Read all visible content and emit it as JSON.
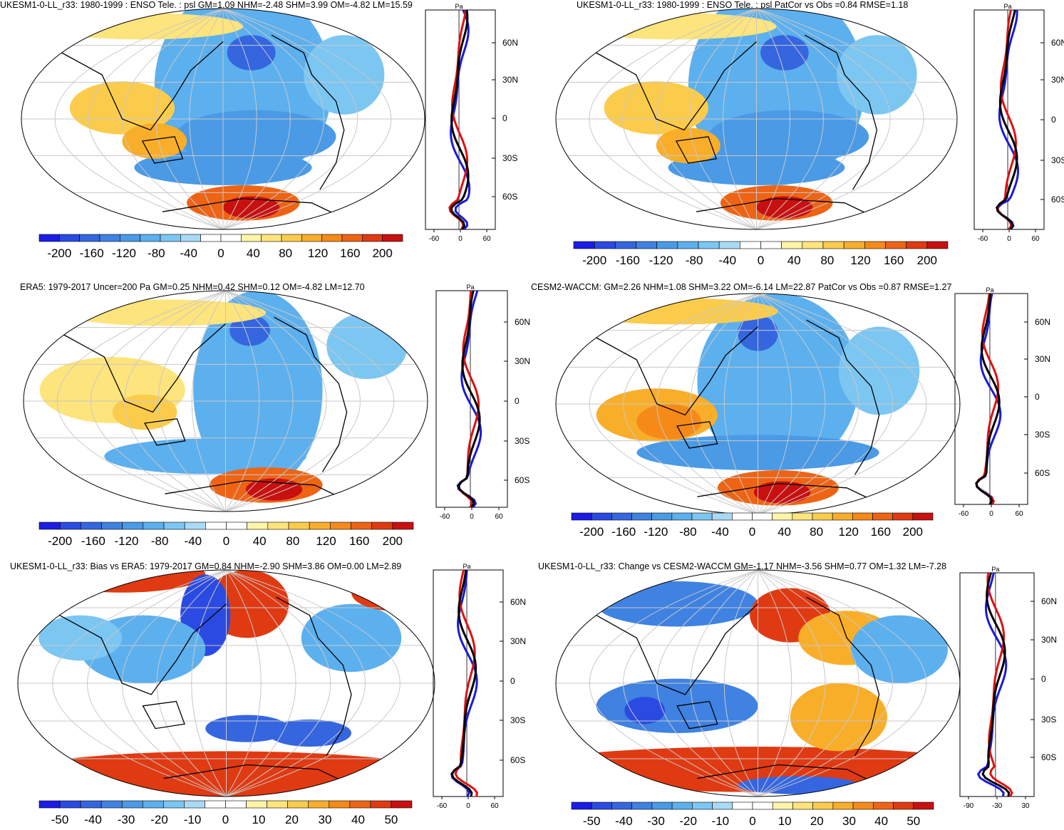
{
  "palette": {
    "cool": [
      "#1c1ce6",
      "#2b4ae2",
      "#3566e0",
      "#3f82e2",
      "#4a9ae6",
      "#5cb0ee",
      "#7cc6f2",
      "#a8daf6"
    ],
    "neutral": "#ffffff",
    "warm": [
      "#fff4a8",
      "#fde47c",
      "#fbcc4c",
      "#f9ae2a",
      "#f58a18",
      "#ee6414",
      "#e03a12",
      "#c81010"
    ],
    "coast": "#000000",
    "grid": "#c8c8c8",
    "blue_line": "#1a1ad8",
    "red_line": "#e01010",
    "black_line": "#000000"
  },
  "panels": [
    {
      "title": "UKESM1-0-LL_r33: 1980-1999 : ENSO Tele. : psl GM=1.09 NHM=-2.48 SHM=3.99 OM=-4.82 LM=15.59",
      "colorbar_labels": [
        "-200",
        "-160",
        "-120",
        "-80",
        "-40",
        "0",
        "40",
        "80",
        "120",
        "160",
        "200"
      ],
      "profile_unit": "Pa",
      "profile_x_ticks": [
        "-60",
        "0",
        "60"
      ],
      "profile_y_ticks": [
        "60N",
        "30N",
        "0",
        "30S",
        "60S"
      ]
    },
    {
      "title": "UKESM1-0-LL_r33: 1980-1999 : ENSO Tele. : psl PatCor vs Obs =0.84 RMSE=1.18",
      "colorbar_labels": [
        "-200",
        "-160",
        "-120",
        "-80",
        "-40",
        "0",
        "40",
        "80",
        "120",
        "160",
        "200"
      ],
      "profile_unit": "Pa",
      "profile_x_ticks": [
        "-60",
        "0",
        "60"
      ],
      "profile_y_ticks": [
        "60N",
        "30N",
        "0",
        "30S",
        "60S"
      ]
    },
    {
      "title": "ERA5: 1979-2017 Uncer=200 Pa GM=0.25 NHM=0.42 SHM=0.12 OM=-4.82 LM=12.70",
      "colorbar_labels": [
        "-200",
        "-160",
        "-120",
        "-80",
        "-40",
        "0",
        "40",
        "80",
        "120",
        "160",
        "200"
      ],
      "profile_unit": "Pa",
      "profile_x_ticks": [
        "-60",
        "0",
        "60"
      ],
      "profile_y_ticks": [
        "60N",
        "30N",
        "0",
        "30S",
        "60S"
      ]
    },
    {
      "title": "CESM2-WACCM: GM=2.26 NHM=1.08 SHM=3.22 OM=-6.14 LM=22.87 PatCor vs Obs =0.87 RMSE=1.27",
      "colorbar_labels": [
        "-200",
        "-160",
        "-120",
        "-80",
        "-40",
        "0",
        "40",
        "80",
        "120",
        "160",
        "200"
      ],
      "profile_unit": "Pa",
      "profile_x_ticks": [
        "-60",
        "0",
        "60"
      ],
      "profile_y_ticks": [
        "60N",
        "30N",
        "0",
        "30S",
        "60S"
      ]
    },
    {
      "title": "UKESM1-0-LL_r33: Bias vs ERA5: 1979-2017 GM=0.84 NHM=-2.90 SHM=3.86 OM=0.00 LM=2.89",
      "colorbar_labels": [
        "-50",
        "-40",
        "-30",
        "-20",
        "-10",
        "0",
        "10",
        "20",
        "30",
        "40",
        "50"
      ],
      "profile_unit": "Pa",
      "profile_x_ticks": [
        "-60",
        "0",
        "60"
      ],
      "profile_y_ticks": [
        "60N",
        "30N",
        "0",
        "30S",
        "60S"
      ]
    },
    {
      "title": "UKESM1-0-LL_r33: Change vs CESM2-WACCM GM=-1.17 NHM=-3.56 SHM=0.77 OM=1.32 LM=-7.28",
      "colorbar_labels": [
        "-50",
        "-40",
        "-30",
        "-20",
        "-10",
        "0",
        "10",
        "20",
        "30",
        "40",
        "50"
      ],
      "profile_unit": "Pa",
      "profile_x_ticks": [
        "-90",
        "-30",
        "30"
      ],
      "profile_y_ticks": [
        "60N",
        "30N",
        "0",
        "30S",
        "60S"
      ]
    }
  ]
}
